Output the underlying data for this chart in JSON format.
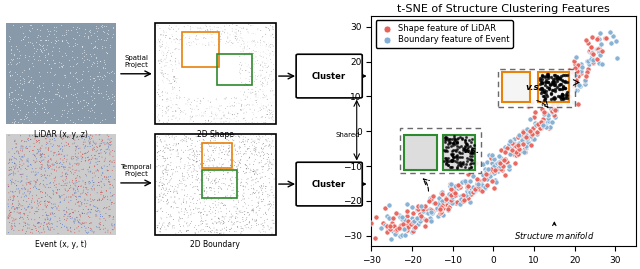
{
  "title": "t-SNE of Structure Clustering Features",
  "legend_labels": [
    "Shape feature of LiDAR",
    "Boundary feature of Event"
  ],
  "legend_colors": [
    "#e8625a",
    "#82afd3"
  ],
  "xlim": [
    -30,
    35
  ],
  "ylim": [
    -33,
    33
  ],
  "xticks": [
    -30,
    -20,
    -10,
    0,
    10,
    20,
    30
  ],
  "yticks": [
    -30,
    -20,
    -10,
    0,
    10,
    20,
    30
  ],
  "structure_manifold_label": "Structure manifold",
  "vs_label": "v.s.",
  "seed": 123,
  "lidar_label": "LiDAR (x, y, z)",
  "event_label": "Event (x, y, t)",
  "shape2d_label": "2D Shape",
  "boundary2d_label": "2D Boundary",
  "spatial_project": "Spatial\nProject",
  "temporal_project": "Temporal\nProject",
  "shared_label": "Shared",
  "cluster_label": "Cluster",
  "bg_lidar": "#8899aa",
  "bg_event_colors": [
    "#cc3333",
    "#3366cc"
  ]
}
